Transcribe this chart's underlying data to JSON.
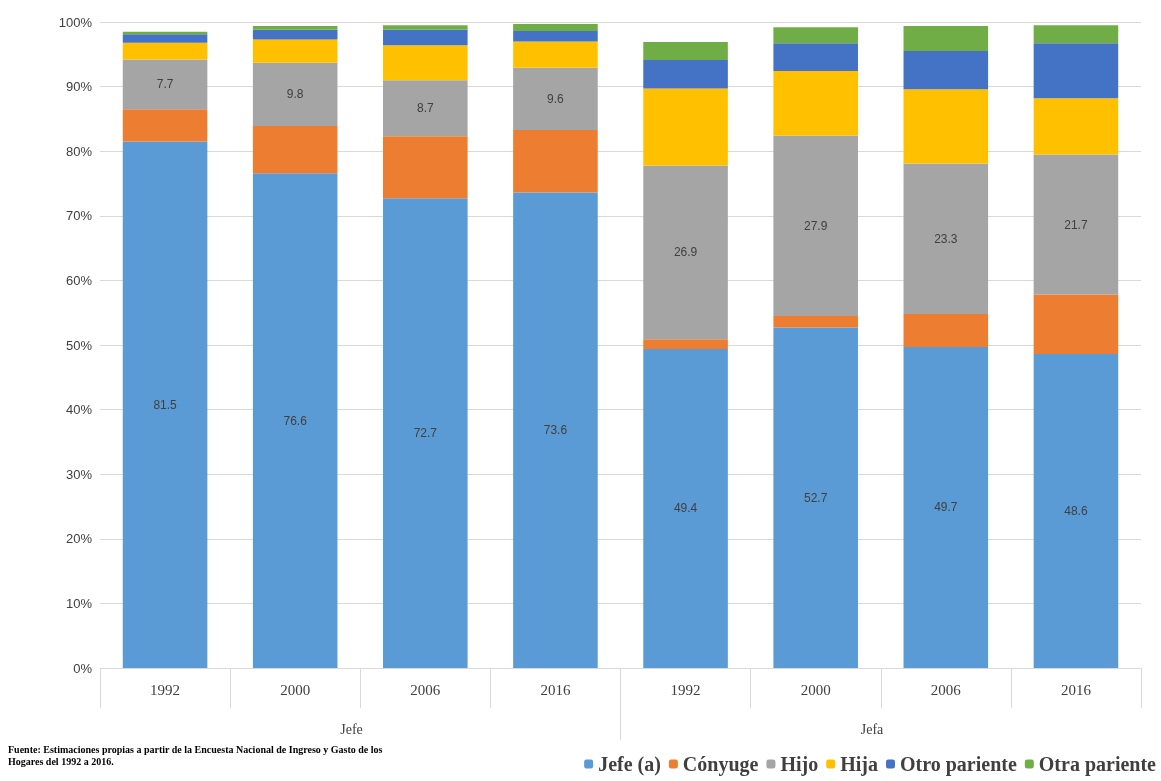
{
  "chart_data": {
    "type": "bar",
    "stacked": true,
    "categories": [
      "1992",
      "2000",
      "2006",
      "2016",
      "1992",
      "2000",
      "2006",
      "2016"
    ],
    "series": [
      {
        "name": "Jefe (a)",
        "color": "#5b9bd5",
        "values": [
          81.5,
          76.6,
          72.7,
          73.6,
          49.4,
          52.7,
          49.7,
          48.6
        ],
        "value_labels": [
          "81.5",
          "76.6",
          "72.7",
          "73.6",
          "49.4",
          "52.7",
          "49.7",
          "48.6"
        ]
      },
      {
        "name": "Cónyuge",
        "color": "#ed7d31",
        "values": [
          5,
          7.3,
          9.6,
          9.7,
          1.5,
          1.8,
          5.1,
          9.2
        ]
      },
      {
        "name": "Hijo",
        "color": "#a5a5a5",
        "values": [
          7.7,
          9.8,
          8.7,
          9.6,
          26.9,
          27.9,
          23.3,
          21.7
        ],
        "value_labels": [
          "7.7",
          "9.8",
          "8.7",
          "9.6",
          "26.9",
          "27.9",
          "23.3",
          "21.7"
        ]
      },
      {
        "name": "Hija",
        "color": "#ffc000",
        "values": [
          2.6,
          3.6,
          5.4,
          4.1,
          11.9,
          10,
          11.5,
          8.7
        ]
      },
      {
        "name": "Otro pariente",
        "color": "#4472c4",
        "values": [
          1.3,
          1.5,
          2.4,
          1.6,
          4.4,
          4.3,
          5.9,
          8.5
        ]
      },
      {
        "name": "Otra pariente",
        "color": "#70ad47",
        "values": [
          0.4,
          0.6,
          0.7,
          1.1,
          2.8,
          2.5,
          3.9,
          2.8
        ]
      }
    ],
    "ylim": [
      0,
      100
    ],
    "yticks": [
      {
        "value": 0,
        "label": "0%"
      },
      {
        "value": 10,
        "label": "10%"
      },
      {
        "value": 20,
        "label": "20%"
      },
      {
        "value": 30,
        "label": "30%"
      },
      {
        "value": 40,
        "label": "40%"
      },
      {
        "value": 50,
        "label": "50%"
      },
      {
        "value": 60,
        "label": "60%"
      },
      {
        "value": 70,
        "label": "70%"
      },
      {
        "value": 80,
        "label": "80%"
      },
      {
        "value": 90,
        "label": "90%"
      },
      {
        "value": 100,
        "label": "100%"
      }
    ],
    "grid": "y",
    "legend": "bottom right",
    "annotations": [
      "Jefe",
      "Jefa",
      "Fuente: Estimaciones propias a partir de la Encuesta Nacional de Ingreso y Gasto de los Hogares del 1992 a 2016."
    ]
  }
}
